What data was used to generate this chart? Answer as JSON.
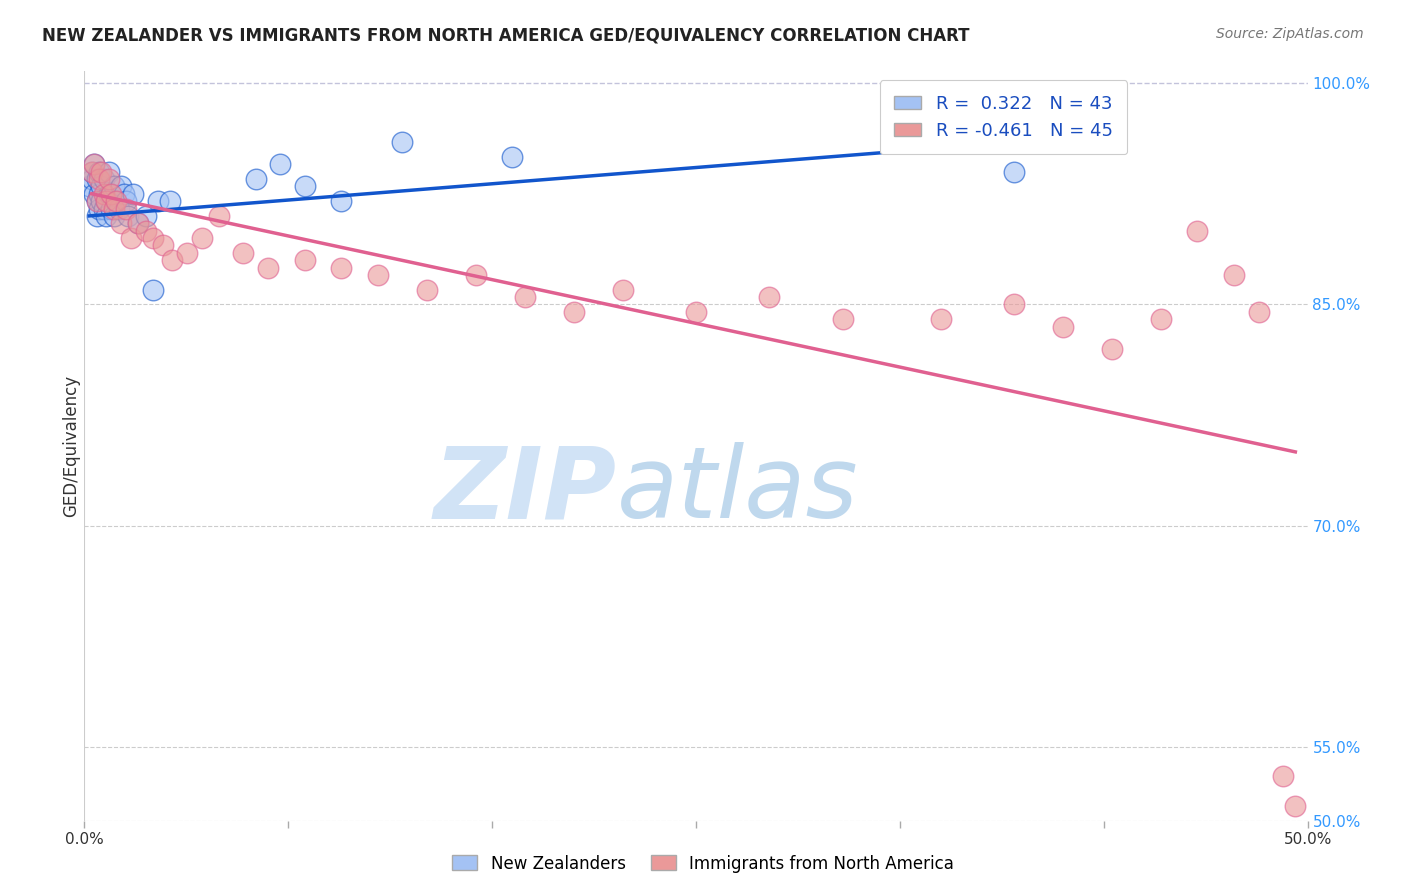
{
  "title": "NEW ZEALANDER VS IMMIGRANTS FROM NORTH AMERICA GED/EQUIVALENCY CORRELATION CHART",
  "source": "Source: ZipAtlas.com",
  "ylabel": "GED/Equivalency",
  "xlim": [
    0.0,
    0.5
  ],
  "ylim": [
    0.5,
    1.008
  ],
  "xticks": [
    0.0,
    0.0833,
    0.1667,
    0.25,
    0.3333,
    0.4167,
    0.5
  ],
  "xtick_labels": [
    "0.0%",
    "",
    "",
    "",
    "",
    "",
    "50.0%"
  ],
  "ytick_labels": [
    "50.0%",
    "55.0%",
    "70.0%",
    "85.0%",
    "100.0%"
  ],
  "yticks": [
    0.5,
    0.55,
    0.7,
    0.85,
    1.0
  ],
  "R_blue": 0.322,
  "N_blue": 43,
  "R_pink": -0.461,
  "N_pink": 45,
  "blue_color": "#a4c2f4",
  "pink_color": "#ea9999",
  "blue_line_color": "#1155cc",
  "pink_line_color": "#e06090",
  "legend_label_blue": "New Zealanders",
  "legend_label_pink": "Immigrants from North America",
  "blue_scatter_x": [
    0.002,
    0.003,
    0.003,
    0.004,
    0.004,
    0.005,
    0.005,
    0.005,
    0.006,
    0.006,
    0.006,
    0.007,
    0.007,
    0.008,
    0.008,
    0.009,
    0.009,
    0.01,
    0.01,
    0.011,
    0.011,
    0.012,
    0.012,
    0.013,
    0.014,
    0.015,
    0.016,
    0.017,
    0.018,
    0.02,
    0.022,
    0.025,
    0.028,
    0.03,
    0.035,
    0.07,
    0.08,
    0.09,
    0.105,
    0.13,
    0.175,
    0.33,
    0.38
  ],
  "blue_scatter_y": [
    0.93,
    0.935,
    0.94,
    0.925,
    0.945,
    0.92,
    0.91,
    0.935,
    0.925,
    0.915,
    0.94,
    0.93,
    0.92,
    0.915,
    0.935,
    0.92,
    0.91,
    0.925,
    0.94,
    0.915,
    0.925,
    0.91,
    0.93,
    0.92,
    0.915,
    0.93,
    0.925,
    0.92,
    0.91,
    0.925,
    0.905,
    0.91,
    0.86,
    0.92,
    0.92,
    0.935,
    0.945,
    0.93,
    0.92,
    0.96,
    0.95,
    0.965,
    0.94
  ],
  "pink_scatter_x": [
    0.003,
    0.004,
    0.005,
    0.006,
    0.007,
    0.008,
    0.009,
    0.01,
    0.011,
    0.012,
    0.013,
    0.015,
    0.017,
    0.019,
    0.022,
    0.025,
    0.028,
    0.032,
    0.036,
    0.042,
    0.048,
    0.055,
    0.065,
    0.075,
    0.09,
    0.105,
    0.12,
    0.14,
    0.16,
    0.18,
    0.2,
    0.22,
    0.25,
    0.28,
    0.31,
    0.35,
    0.38,
    0.4,
    0.42,
    0.44,
    0.455,
    0.47,
    0.48,
    0.49,
    0.495
  ],
  "pink_scatter_y": [
    0.94,
    0.945,
    0.92,
    0.935,
    0.94,
    0.925,
    0.92,
    0.935,
    0.925,
    0.915,
    0.92,
    0.905,
    0.915,
    0.895,
    0.905,
    0.9,
    0.895,
    0.89,
    0.88,
    0.885,
    0.895,
    0.91,
    0.885,
    0.875,
    0.88,
    0.875,
    0.87,
    0.86,
    0.87,
    0.855,
    0.845,
    0.86,
    0.845,
    0.855,
    0.84,
    0.84,
    0.85,
    0.835,
    0.82,
    0.84,
    0.9,
    0.87,
    0.845,
    0.53,
    0.51
  ],
  "background_color": "#ffffff",
  "grid_color": "#cccccc",
  "blue_trend_x": [
    0.002,
    0.38
  ],
  "blue_trend_y": [
    0.91,
    0.96
  ],
  "pink_trend_x": [
    0.003,
    0.495
  ],
  "pink_trend_y": [
    0.925,
    0.75
  ]
}
